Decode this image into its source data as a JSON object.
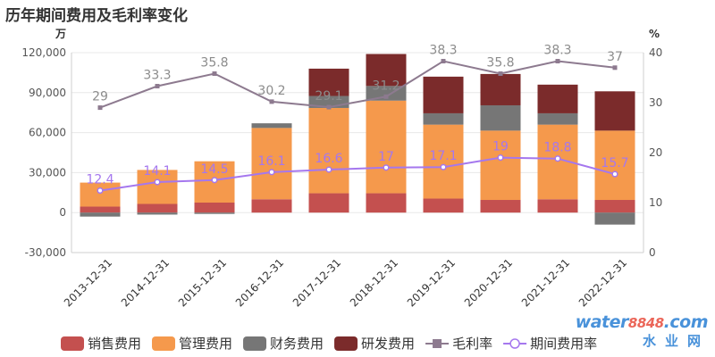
{
  "chart_data": {
    "type": "bar",
    "title": "历年期间费用及毛利率变化",
    "y_left_unit": "万",
    "y_right_unit": "%",
    "y_left_range": [
      -30000,
      120000
    ],
    "y_left_ticks": [
      "120,000",
      "90,000",
      "60,000",
      "30,000",
      "0",
      "-30,000"
    ],
    "y_left_tick_values": [
      120000,
      90000,
      60000,
      30000,
      0,
      -30000
    ],
    "y_right_range": [
      0,
      40
    ],
    "y_right_ticks": [
      "40",
      "30",
      "20",
      "10",
      "0"
    ],
    "y_right_tick_values": [
      40,
      30,
      20,
      10,
      0
    ],
    "categories": [
      "2013-12-31",
      "2014-12-31",
      "2015-12-31",
      "2016-12-31",
      "2017-12-31",
      "2018-12-31",
      "2019-12-31",
      "2020-12-31",
      "2021-12-31",
      "2022-12-31"
    ],
    "bar_series": [
      {
        "name": "销售费用",
        "color": "#c4504f",
        "values": [
          4500,
          6500,
          7500,
          10000,
          14500,
          14500,
          10500,
          9500,
          10000,
          9500
        ]
      },
      {
        "name": "管理费用",
        "color": "#f5994c",
        "values": [
          18000,
          25500,
          31000,
          53500,
          64000,
          69500,
          55500,
          52000,
          56000,
          52000
        ]
      },
      {
        "name": "财务费用",
        "color": "#767676",
        "values": [
          -3000,
          -1500,
          -1000,
          3500,
          9000,
          11000,
          8500,
          19000,
          8500,
          -9000
        ]
      },
      {
        "name": "研发费用",
        "color": "#7b2b2b",
        "values": [
          0,
          0,
          0,
          0,
          20500,
          24000,
          27500,
          23500,
          21500,
          29500
        ]
      }
    ],
    "line_series": [
      {
        "name": "毛利率",
        "color": "#8d7a8f",
        "axis": "right",
        "values": [
          29,
          33.3,
          35.8,
          30.2,
          29.1,
          31.2,
          38.3,
          35.8,
          38.3,
          37
        ],
        "labels": [
          "29",
          "33.3",
          "35.8",
          "30.2",
          "29.1",
          "31.2",
          "38.3",
          "35.8",
          "38.3",
          "37"
        ]
      },
      {
        "name": "期间费用率",
        "color": "#a577ee",
        "axis": "right",
        "values": [
          12.4,
          14.1,
          14.5,
          16.1,
          16.6,
          17,
          17.1,
          19,
          18.8,
          15.7
        ],
        "labels": [
          "12.4",
          "14.1",
          "14.5",
          "16.1",
          "16.6",
          "17",
          "17.1",
          "19",
          "18.8",
          "15.7"
        ]
      }
    ],
    "legend": {
      "placement": "bottom",
      "items": [
        "销售费用",
        "管理费用",
        "财务费用",
        "研发费用",
        "毛利率",
        "期间费用率"
      ]
    }
  },
  "watermark": {
    "brand": "water",
    "digits": "8848",
    "suffix": ".com",
    "sub": "水业网"
  }
}
